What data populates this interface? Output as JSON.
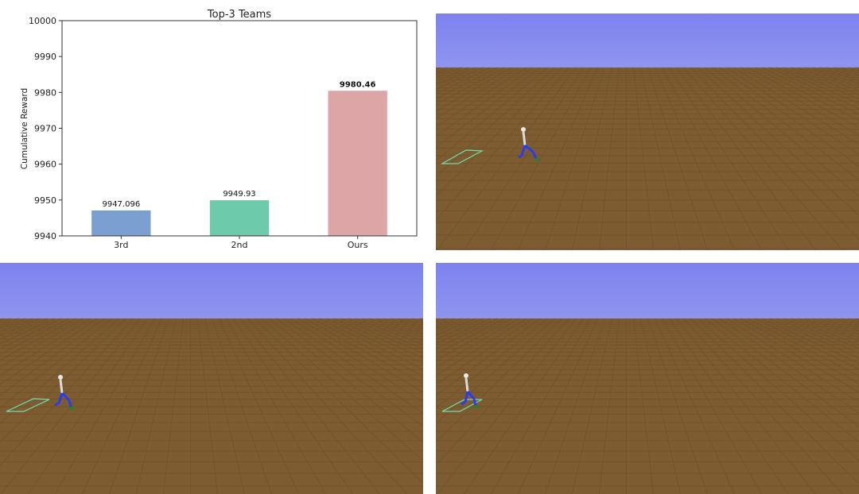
{
  "chart_data": {
    "type": "bar",
    "title": "Top-3 Teams",
    "xlabel": "",
    "ylabel": "Cumulative Reward",
    "ylim": [
      9940,
      10000
    ],
    "yticks": [
      9940,
      9950,
      9960,
      9970,
      9980,
      9990,
      10000
    ],
    "categories": [
      "3rd",
      "2nd",
      "Ours"
    ],
    "values": [
      9947.096,
      9949.93,
      9980.46
    ],
    "value_labels": [
      "9947.096",
      "9949.93",
      "9980.46"
    ],
    "bar_colors": [
      "#7b9fd0",
      "#6cc9a9",
      "#dca6a6"
    ],
    "emphasis": [
      false,
      false,
      true
    ]
  },
  "simulation_views": [
    {
      "name": "sim-view-1",
      "sky_color": "#8085ee",
      "ground_color": "#7c5b30"
    },
    {
      "name": "sim-view-2",
      "sky_color": "#8085ee",
      "ground_color": "#7c5b30"
    },
    {
      "name": "sim-view-3",
      "sky_color": "#8085ee",
      "ground_color": "#7c5b30"
    }
  ]
}
